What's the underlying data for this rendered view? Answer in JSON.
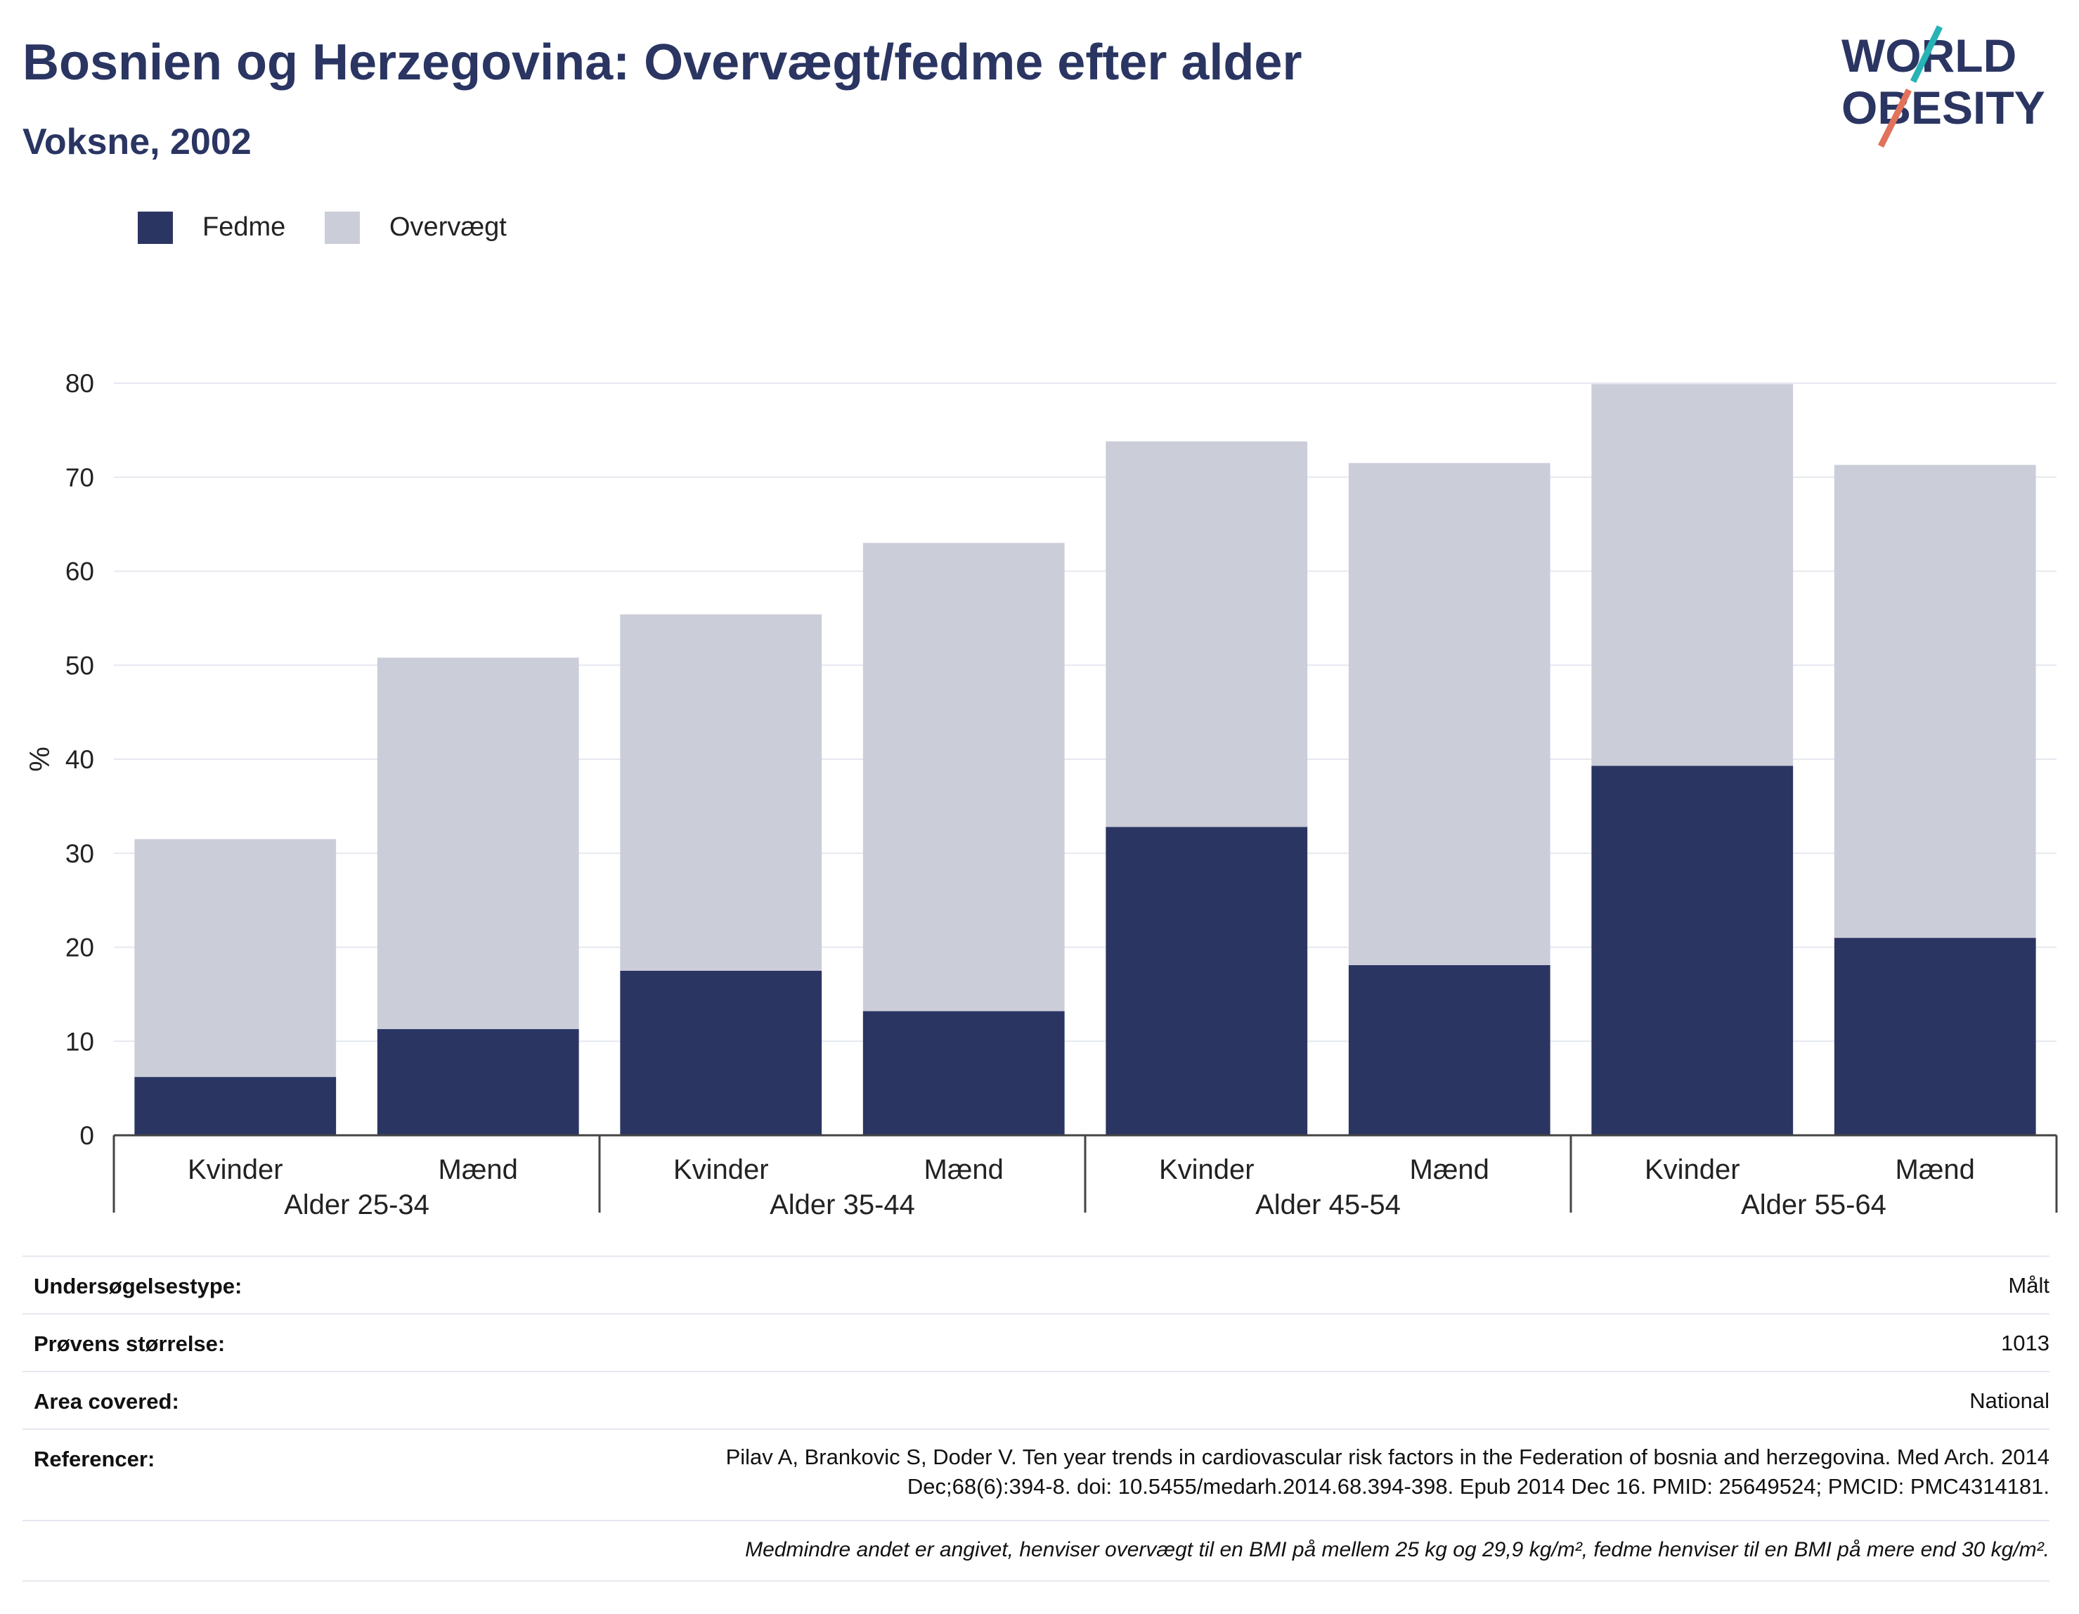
{
  "header": {
    "title": "Bosnien og Herzegovina: Overvægt/fedme efter alder",
    "subtitle": "Voksne, 2002"
  },
  "logo": {
    "line1": "WORLD",
    "line2": "OBESITY",
    "colors": {
      "text": "#2a3562",
      "slash_top": "#27b3b5",
      "slash_bottom": "#e2725b"
    }
  },
  "colors": {
    "obesity": "#2a3562",
    "overweight": "#cbcdd9",
    "grid": "#e6e8f0",
    "axis": "#444444"
  },
  "chart_data": {
    "type": "bar",
    "stacked": true,
    "ylabel": "%",
    "ylim": [
      0,
      80
    ],
    "yticks": [
      0,
      10,
      20,
      30,
      40,
      50,
      60,
      70,
      80
    ],
    "grid": true,
    "legend_position": "top-left",
    "groups": [
      "Alder 25-34",
      "Alder 35-44",
      "Alder 45-54",
      "Alder 55-64"
    ],
    "categories": [
      "Kvinder",
      "Mænd",
      "Kvinder",
      "Mænd",
      "Kvinder",
      "Mænd",
      "Kvinder",
      "Mænd"
    ],
    "series": [
      {
        "name": "Fedme",
        "values": [
          6.2,
          11.3,
          17.5,
          13.2,
          32.8,
          18.1,
          39.3,
          21.0
        ]
      },
      {
        "name": "Overvægt",
        "values": [
          25.3,
          39.5,
          37.9,
          49.8,
          41.0,
          53.4,
          40.6,
          50.3
        ]
      }
    ]
  },
  "info": {
    "rows": [
      {
        "key": "Undersøgelsestype:",
        "value": "Målt"
      },
      {
        "key": "Prøvens størrelse:",
        "value": "1013"
      },
      {
        "key": "Area covered:",
        "value": "National"
      },
      {
        "key": "Referencer:",
        "value_lines": [
          "Pilav A, Brankovic S, Doder V. Ten year trends in cardiovascular risk factors in the Federation of bosnia and herzegovina. Med Arch. 2014",
          "Dec;68(6):394-8. doi: 10.5455/medarh.2014.68.394-398. Epub 2014 Dec 16. PMID: 25649524; PMCID: PMC4314181."
        ]
      }
    ],
    "note": "Medmindre andet er angivet, henviser overvægt til en BMI på mellem 25 kg og 29,9 kg/m², fedme henviser til en BMI på mere end 30 kg/m²."
  }
}
